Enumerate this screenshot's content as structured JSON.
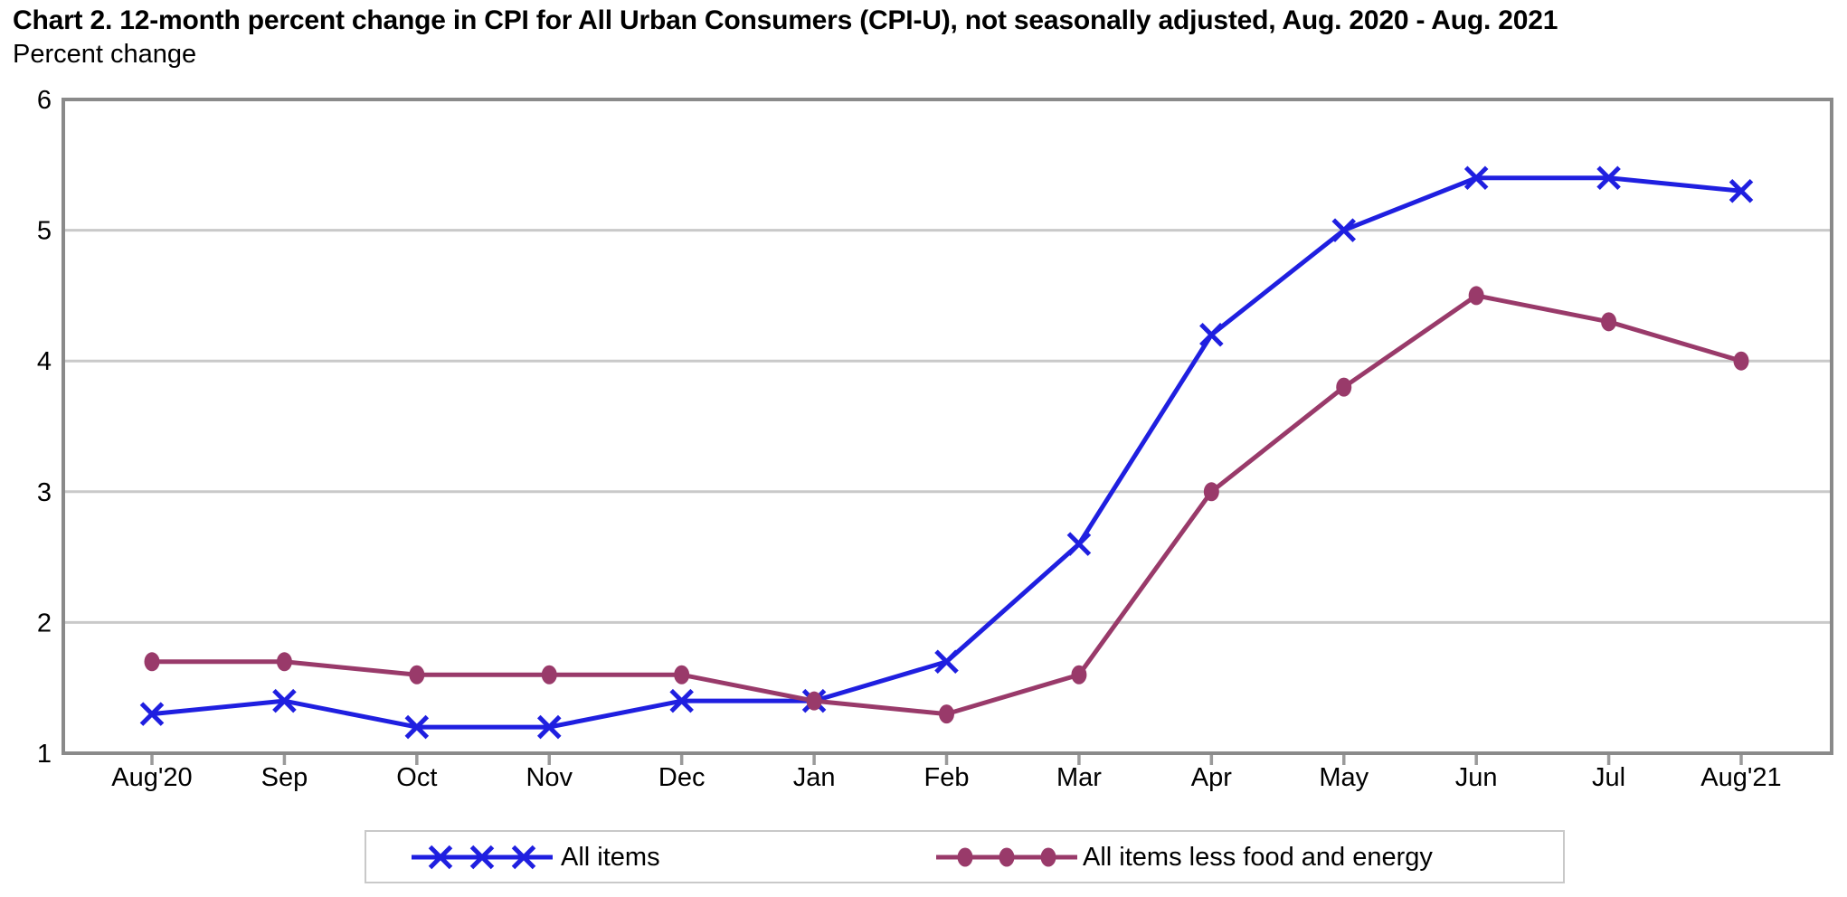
{
  "chart_data": {
    "type": "line",
    "title": "Chart 2. 12-month percent change in CPI for All Urban Consumers (CPI-U), not seasonally adjusted, Aug. 2020 - Aug. 2021",
    "ylabel": "Percent change",
    "xlabel": "",
    "categories": [
      "Aug'20",
      "Sep",
      "Oct",
      "Nov",
      "Dec",
      "Jan",
      "Feb",
      "Mar",
      "Apr",
      "May",
      "Jun",
      "Jul",
      "Aug'21"
    ],
    "yticks": [
      6,
      5,
      4,
      3,
      2,
      1
    ],
    "ylim": [
      1,
      6
    ],
    "grid": "horizontal-only",
    "legend_position": "bottom",
    "series": [
      {
        "name": "All items",
        "marker": "x",
        "color": "#1f1fe0",
        "values": [
          1.3,
          1.4,
          1.2,
          1.2,
          1.4,
          1.4,
          1.7,
          2.6,
          4.2,
          5.0,
          5.4,
          5.4,
          5.3
        ]
      },
      {
        "name": "All items less food and energy",
        "marker": "dot",
        "color": "#993a6a",
        "values": [
          1.7,
          1.7,
          1.6,
          1.6,
          1.6,
          1.4,
          1.3,
          1.6,
          3.0,
          3.8,
          4.5,
          4.3,
          4.0
        ]
      }
    ],
    "colors": {
      "frame": "#8a8a8a",
      "gridline": "#c9c9c9",
      "tick": "#9a9a9a",
      "text": "#000000",
      "background": "#ffffff"
    }
  }
}
